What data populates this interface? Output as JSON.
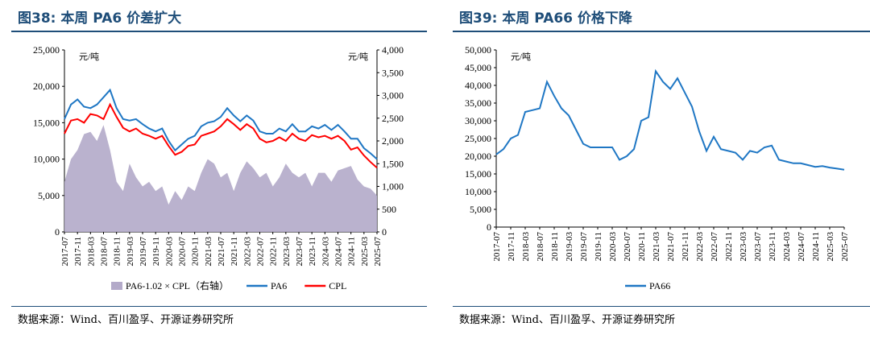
{
  "left": {
    "title": "图38:  本周 PA6 价差扩大",
    "source": "数据来源：Wind、百川盈孚、开源证券研究所",
    "unit_left": "元/吨",
    "unit_right": "元/吨",
    "colors": {
      "PA6": "#1f77c4",
      "CPL": "#ff0000",
      "spread": "#b3aac9"
    }
  },
  "right": {
    "title": "图39:  本周 PA66 价格下降",
    "source": "数据来源：Wind、百川盈孚、开源证券研究所",
    "unit_left": "元/吨",
    "colors": {
      "PA66": "#1f77c4"
    }
  },
  "chart_data": [
    {
      "type": "line",
      "title": "本周 PA6 价差扩大",
      "x_tick_labels": [
        "2017-07",
        "2017-11",
        "2018-03",
        "2018-07",
        "2018-11",
        "2019-03",
        "2019-07",
        "2019-11",
        "2020-03",
        "2020-07",
        "2020-11",
        "2021-03",
        "2021-07",
        "2021-11",
        "2022-03",
        "2022-07",
        "2022-11",
        "2023-03",
        "2023-07",
        "2023-11",
        "2024-03",
        "2024-07",
        "2024-11",
        "2025-03",
        "2025-07"
      ],
      "y_left": {
        "min": 0,
        "max": 25000,
        "ticks": [
          "0",
          "5,000",
          "10,000",
          "15,000",
          "20,000",
          "25,000"
        ]
      },
      "y_right": {
        "min": 0,
        "max": 4000,
        "ticks": [
          "0",
          "500",
          "1,000",
          "1,500",
          "2,000",
          "2,500",
          "3,000",
          "3,500",
          "4,000"
        ]
      },
      "series": [
        {
          "name": "PA6-1.02 × CPL（右轴）",
          "kind": "area",
          "axis": "right",
          "x": [
            "2017-07",
            "2017-09",
            "2017-11",
            "2018-01",
            "2018-03",
            "2018-05",
            "2018-07",
            "2018-09",
            "2018-11",
            "2019-01",
            "2019-03",
            "2019-05",
            "2019-07",
            "2019-09",
            "2019-11",
            "2020-01",
            "2020-03",
            "2020-05",
            "2020-07",
            "2020-09",
            "2020-11",
            "2021-01",
            "2021-03",
            "2021-05",
            "2021-07",
            "2021-09",
            "2021-11",
            "2022-01",
            "2022-03",
            "2022-05",
            "2022-07",
            "2022-09",
            "2022-11",
            "2023-01",
            "2023-03",
            "2023-05",
            "2023-07",
            "2023-09",
            "2023-11",
            "2024-01",
            "2024-03",
            "2024-05",
            "2024-07",
            "2024-09",
            "2024-11",
            "2025-01",
            "2025-03",
            "2025-05",
            "2025-07"
          ],
          "values": [
            1100,
            1600,
            1800,
            2150,
            2200,
            2000,
            2350,
            1800,
            1100,
            900,
            1500,
            1200,
            1000,
            1100,
            900,
            1000,
            600,
            900,
            700,
            1000,
            900,
            1300,
            1600,
            1500,
            1200,
            1300,
            900,
            1300,
            1550,
            1400,
            1200,
            1300,
            1000,
            1200,
            1500,
            1300,
            1200,
            1300,
            1000,
            1300,
            1300,
            1100,
            1350,
            1400,
            1450,
            1150,
            1000,
            950,
            800
          ]
        },
        {
          "name": "PA6",
          "axis": "left",
          "x": [
            "2017-07",
            "2017-09",
            "2017-11",
            "2018-01",
            "2018-03",
            "2018-05",
            "2018-07",
            "2018-09",
            "2018-11",
            "2019-01",
            "2019-03",
            "2019-05",
            "2019-07",
            "2019-09",
            "2019-11",
            "2020-01",
            "2020-03",
            "2020-05",
            "2020-07",
            "2020-09",
            "2020-11",
            "2021-01",
            "2021-03",
            "2021-05",
            "2021-07",
            "2021-09",
            "2021-11",
            "2022-01",
            "2022-03",
            "2022-05",
            "2022-07",
            "2022-09",
            "2022-11",
            "2023-01",
            "2023-03",
            "2023-05",
            "2023-07",
            "2023-09",
            "2023-11",
            "2024-01",
            "2024-03",
            "2024-05",
            "2024-07",
            "2024-09",
            "2024-11",
            "2025-01",
            "2025-03",
            "2025-05",
            "2025-07"
          ],
          "values": [
            15500,
            17500,
            18200,
            17200,
            17000,
            17500,
            18500,
            19500,
            17000,
            15500,
            15300,
            15500,
            14800,
            14200,
            13800,
            14200,
            12500,
            11200,
            12000,
            12800,
            13200,
            14500,
            15000,
            15200,
            15800,
            17000,
            16000,
            15200,
            16000,
            15300,
            13800,
            13500,
            13500,
            14200,
            13800,
            14800,
            13800,
            13800,
            14500,
            14200,
            14700,
            14000,
            14700,
            13800,
            12800,
            12800,
            11500,
            10800,
            10000
          ]
        },
        {
          "name": "CPL",
          "axis": "left",
          "x": [
            "2017-07",
            "2017-09",
            "2017-11",
            "2018-01",
            "2018-03",
            "2018-05",
            "2018-07",
            "2018-09",
            "2018-11",
            "2019-01",
            "2019-03",
            "2019-05",
            "2019-07",
            "2019-09",
            "2019-11",
            "2020-01",
            "2020-03",
            "2020-05",
            "2020-07",
            "2020-09",
            "2020-11",
            "2021-01",
            "2021-03",
            "2021-05",
            "2021-07",
            "2021-09",
            "2021-11",
            "2022-01",
            "2022-03",
            "2022-05",
            "2022-07",
            "2022-09",
            "2022-11",
            "2023-01",
            "2023-03",
            "2023-05",
            "2023-07",
            "2023-09",
            "2023-11",
            "2024-01",
            "2024-03",
            "2024-05",
            "2024-07",
            "2024-09",
            "2024-11",
            "2025-01",
            "2025-03",
            "2025-05",
            "2025-07"
          ],
          "values": [
            13500,
            15300,
            15500,
            15000,
            16200,
            16000,
            15500,
            17500,
            15800,
            14300,
            13800,
            14200,
            13500,
            13200,
            12800,
            13200,
            11800,
            10600,
            11000,
            11800,
            12000,
            13200,
            13500,
            13800,
            14500,
            15500,
            14800,
            14000,
            14800,
            14200,
            12800,
            12300,
            12500,
            13000,
            12500,
            13500,
            12800,
            12500,
            13300,
            13000,
            13200,
            12800,
            13200,
            12500,
            11300,
            11600,
            10500,
            9600,
            8800
          ]
        }
      ]
    },
    {
      "type": "line",
      "title": "本周 PA66 价格下降",
      "x_tick_labels": [
        "2017-07",
        "2017-11",
        "2018-03",
        "2018-07",
        "2018-11",
        "2019-03",
        "2019-07",
        "2019-11",
        "2020-03",
        "2020-07",
        "2020-11",
        "2021-03",
        "2021-07",
        "2021-11",
        "2022-03",
        "2022-07",
        "2022-11",
        "2023-03",
        "2023-07",
        "2023-11",
        "2024-03",
        "2024-07",
        "2024-11",
        "2025-03",
        "2025-07"
      ],
      "y_left": {
        "min": 0,
        "max": 50000,
        "ticks": [
          "0",
          "5,000",
          "10,000",
          "15,000",
          "20,000",
          "25,000",
          "30,000",
          "35,000",
          "40,000",
          "45,000",
          "50,000"
        ]
      },
      "series": [
        {
          "name": "PA66",
          "x": [
            "2017-07",
            "2017-09",
            "2017-11",
            "2018-01",
            "2018-03",
            "2018-05",
            "2018-07",
            "2018-09",
            "2018-11",
            "2019-01",
            "2019-03",
            "2019-05",
            "2019-07",
            "2019-09",
            "2019-11",
            "2020-01",
            "2020-03",
            "2020-05",
            "2020-07",
            "2020-09",
            "2020-11",
            "2021-01",
            "2021-03",
            "2021-05",
            "2021-07",
            "2021-09",
            "2021-11",
            "2022-01",
            "2022-03",
            "2022-05",
            "2022-07",
            "2022-09",
            "2022-11",
            "2023-01",
            "2023-03",
            "2023-05",
            "2023-07",
            "2023-09",
            "2023-11",
            "2024-01",
            "2024-03",
            "2024-05",
            "2024-07",
            "2024-09",
            "2024-11",
            "2025-01",
            "2025-03",
            "2025-05",
            "2025-07"
          ],
          "values": [
            20500,
            22000,
            25000,
            26000,
            32500,
            33000,
            33500,
            41000,
            37000,
            33500,
            31500,
            27500,
            23500,
            22500,
            22500,
            22500,
            22500,
            19000,
            20000,
            22000,
            30000,
            31000,
            44000,
            41000,
            39000,
            42000,
            38000,
            34000,
            27000,
            21500,
            25500,
            22000,
            21500,
            21000,
            19000,
            21500,
            21000,
            22500,
            23000,
            19000,
            18500,
            18000,
            18000,
            17500,
            17000,
            17200,
            16800,
            16500,
            16200
          ]
        }
      ]
    }
  ]
}
